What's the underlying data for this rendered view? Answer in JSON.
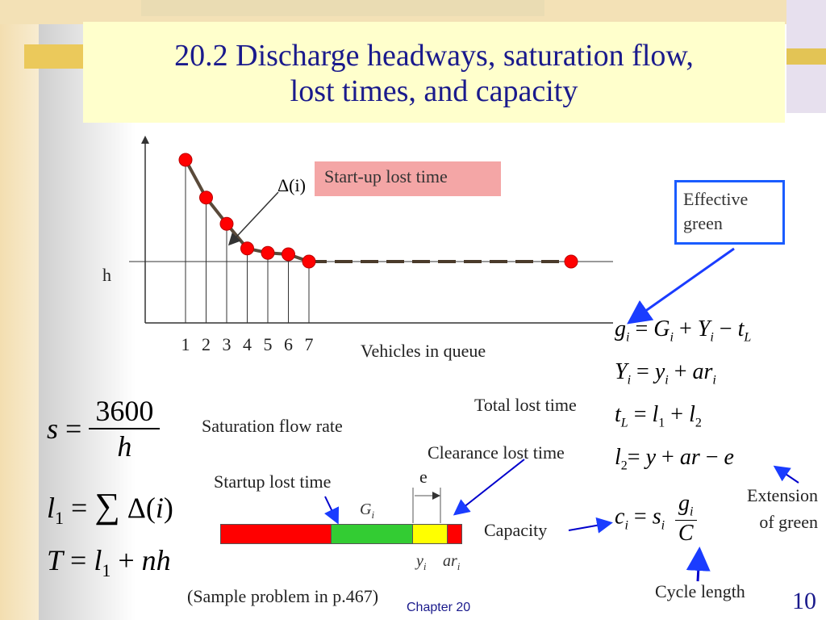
{
  "title": {
    "line1": "20.2 Discharge headways, saturation flow,",
    "line2": "lost times, and capacity"
  },
  "chart": {
    "h_label": "h",
    "delta_label": "Δ(i)",
    "startup_box": "Start-up lost time",
    "x_ticks": [
      "1",
      "2",
      "3",
      "4",
      "5",
      "6",
      "7"
    ],
    "xlabel": "Vehicles in queue"
  },
  "chart_data": {
    "type": "line",
    "xlabel": "Vehicles in queue",
    "ylabel": "h",
    "x": [
      1,
      2,
      3,
      4,
      5,
      6,
      7,
      14
    ],
    "values": [
      3.5,
      2.2,
      1.3,
      0.45,
      0.3,
      0.25,
      0,
      0
    ]
  },
  "effective_green": "Effective green",
  "labels": {
    "saturation_flow_rate": "Saturation flow rate",
    "total_lost_time": "Total lost time",
    "clearance_lost_time": "Clearance lost time",
    "startup_lost_time": "Startup lost time",
    "capacity": "Capacity",
    "extension_of_green_1": "Extension",
    "extension_of_green_2": "of green",
    "cycle_length": "Cycle length",
    "e": "e",
    "sample_problem": "(Sample problem in p.467)"
  },
  "formulas": {
    "g": "g_i = G_i + Y_i − t_L",
    "Y": "Y_i = y_i + ar_i",
    "tL": "t_L = l_1 + l_2",
    "l2": "l_2 = y + ar − e",
    "c": "c_i = s_i g_i / C",
    "s": "s = 3600 / h",
    "l1": "l_1 = ∑ Δ(i)",
    "T": "T = l_1 + nh"
  },
  "bar_labels": {
    "G": "G",
    "G_sub": "i",
    "y": "y",
    "y_sub": "i",
    "ar": "ar",
    "ar_sub": "i"
  },
  "colors": {
    "red": "#ff0000",
    "green": "#33cc33",
    "yellow": "#ffff00",
    "arrow": "#0000cc"
  },
  "footer": {
    "chapter": "Chapter 20",
    "page": "10"
  }
}
